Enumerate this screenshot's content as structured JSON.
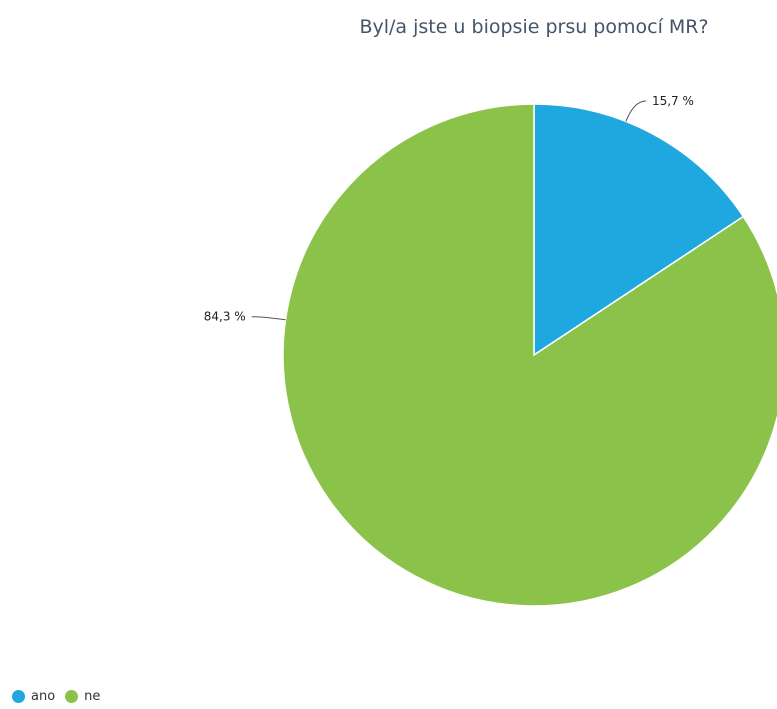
{
  "chart_data": {
    "type": "pie",
    "title": "Byl/a jste u biopsie prsu pomocí MR?",
    "categories": [
      "ano",
      "ne"
    ],
    "values": [
      15.7,
      84.3
    ],
    "unit": "%",
    "data_labels": [
      "15,7 %",
      "84,3 %"
    ],
    "colors": [
      "#1fa8e0",
      "#8bc34a"
    ],
    "legend": "bottom-left",
    "start_angle": "12 o'clock",
    "direction": "clockwise"
  }
}
